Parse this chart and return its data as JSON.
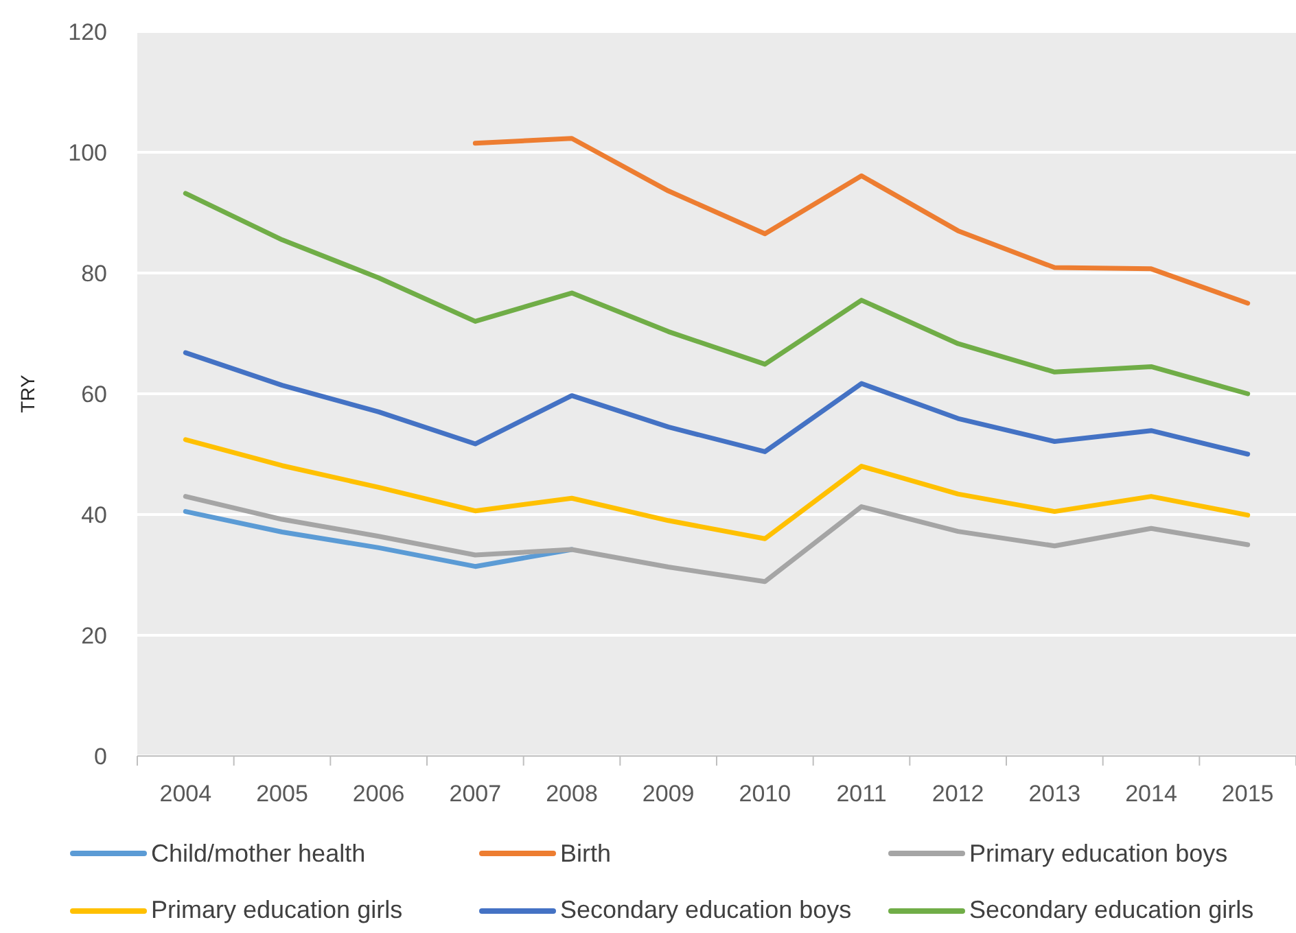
{
  "chart_data": {
    "type": "line",
    "ylabel": "TRY",
    "categories": [
      "2004",
      "2005",
      "2006",
      "2007",
      "2008",
      "2009",
      "2010",
      "2011",
      "2012",
      "2013",
      "2014",
      "2015"
    ],
    "series": [
      {
        "name": "Child/mother health",
        "color": "#5b9bd5",
        "values": [
          40.5,
          37.1,
          34.5,
          31.4,
          34.2,
          null,
          null,
          null,
          null,
          null,
          null,
          null
        ]
      },
      {
        "name": "Birth",
        "color": "#ed7d31",
        "values": [
          null,
          null,
          null,
          101.5,
          102.3,
          93.6,
          86.5,
          96.1,
          87,
          80.9,
          80.7,
          75
        ]
      },
      {
        "name": "Primary education boys",
        "color": "#a5a5a5",
        "values": [
          43,
          39.2,
          36.4,
          33.3,
          34.2,
          31.3,
          28.9,
          41.3,
          37.2,
          34.8,
          37.7,
          35
        ]
      },
      {
        "name": "Primary education girls",
        "color": "#ffc000",
        "values": [
          52.4,
          48.1,
          44.5,
          40.6,
          42.7,
          39,
          36,
          48,
          43.4,
          40.5,
          43,
          39.9
        ]
      },
      {
        "name": "Secondary education boys",
        "color": "#4472c4",
        "values": [
          66.8,
          61.4,
          57,
          51.7,
          59.7,
          54.5,
          50.4,
          61.7,
          55.9,
          52.1,
          53.9,
          50
        ]
      },
      {
        "name": "Secondary education girls",
        "color": "#70ad47",
        "values": [
          93.2,
          85.5,
          79.2,
          72,
          76.7,
          70.3,
          64.9,
          75.5,
          68.3,
          63.6,
          64.5,
          60
        ]
      }
    ],
    "ylim": [
      0,
      120
    ],
    "yticks": [
      0,
      20,
      40,
      60,
      80,
      100,
      120
    ],
    "grid": "y",
    "legend": "bottom",
    "marker": "none",
    "line_style": "solid"
  }
}
